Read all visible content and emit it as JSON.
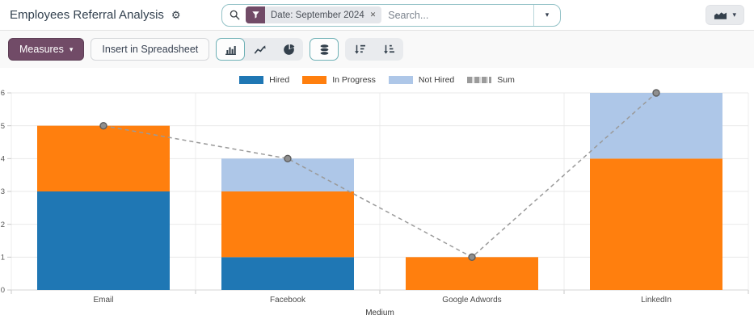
{
  "header": {
    "title": "Employees Referral Analysis",
    "search": {
      "filter_label": "Date: September 2024",
      "placeholder": "Search..."
    }
  },
  "icons": {
    "gear": "⚙",
    "caret_down": "▾",
    "close": "✕"
  },
  "toolbar": {
    "measures_label": "Measures",
    "insert_label": "Insert in Spreadsheet"
  },
  "chart_data": {
    "type": "bar",
    "stacked": true,
    "title": "Employees Referral Analysis",
    "categories": [
      "Email",
      "Facebook",
      "Google Adwords",
      "LinkedIn"
    ],
    "series": [
      {
        "name": "Hired",
        "color": "#1f77b4",
        "values": [
          3,
          1,
          0,
          0
        ]
      },
      {
        "name": "In Progress",
        "color": "#ff7f0e",
        "values": [
          2,
          2,
          1,
          4
        ]
      },
      {
        "name": "Not Hired",
        "color": "#aec7e8",
        "values": [
          0,
          1,
          0,
          2
        ]
      }
    ],
    "line_series": {
      "name": "Sum",
      "color": "#9a9a9a",
      "style": "dashed",
      "values": [
        5,
        4,
        1,
        6
      ]
    },
    "xlabel": "Medium",
    "ylabel": "",
    "ylim": [
      0,
      6
    ],
    "yticks": [
      0,
      1,
      2,
      3,
      4,
      5,
      6
    ],
    "grid": true,
    "legend_position": "top"
  }
}
